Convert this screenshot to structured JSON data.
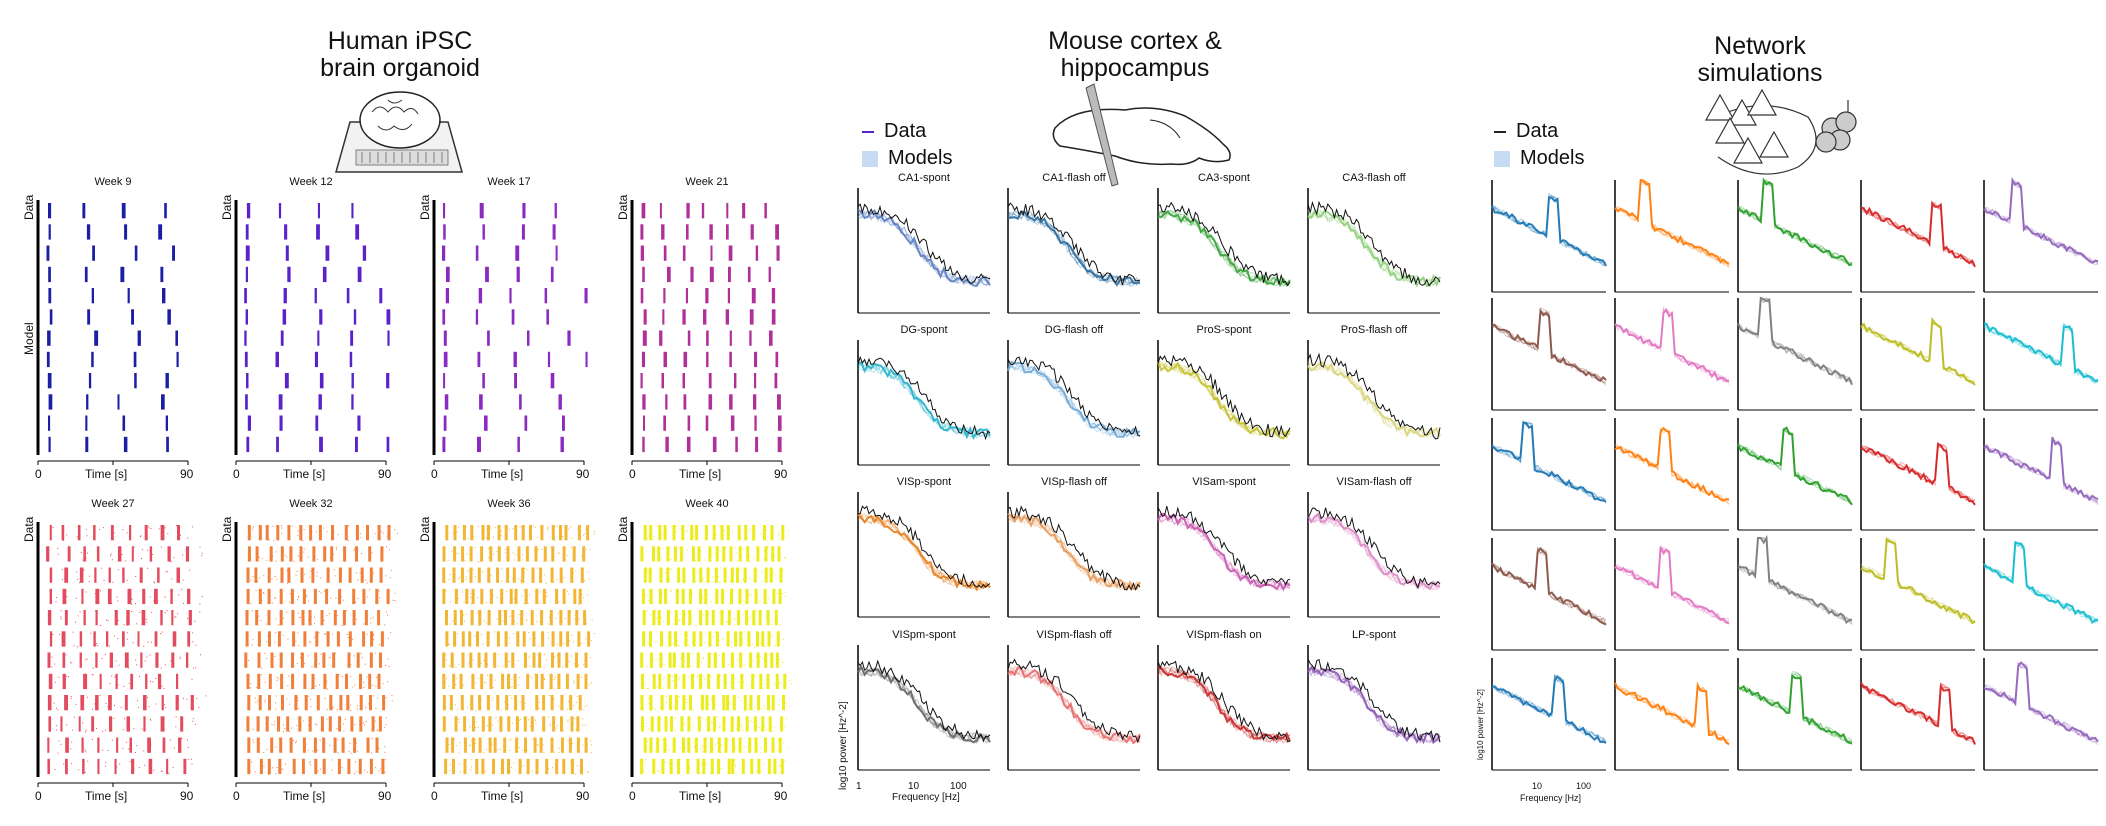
{
  "sections": {
    "organoid": {
      "title_line1": "Human iPSC",
      "title_line2": "brain organoid"
    },
    "mouse": {
      "title_line1": "Mouse cortex &",
      "title_line2": "hippocampus"
    },
    "network": {
      "title_line1": "Network",
      "title_line2": "simulations"
    }
  },
  "legend": {
    "data": "Data",
    "models": "Models"
  },
  "raster": {
    "weeks": [
      "Week 9",
      "Week 12",
      "Week 17",
      "Week 21",
      "Week 27",
      "Week 32",
      "Week 36",
      "Week 40"
    ],
    "colors": [
      "#1c1fa3",
      "#5a22c9",
      "#8a2ac0",
      "#b0309a",
      "#e24c5e",
      "#f07f3c",
      "#f3b534",
      "#ecec1a"
    ],
    "xlabel": "Time [s]",
    "xticks": [
      "0",
      "90"
    ],
    "ylabel_data": "Data",
    "ylabel_model": "Model"
  },
  "mouse_panels": {
    "titles": [
      "CA1-spont",
      "CA1-flash off",
      "CA3-spont",
      "CA3-flash off",
      "DG-spont",
      "DG-flash off",
      "ProS-spont",
      "ProS-flash off",
      "VISp-spont",
      "VISp-flash off",
      "VISam-spont",
      "VISam-flash off",
      "VISpm-spont",
      "VISpm-flash off",
      "VISpm-flash on",
      "LP-spont"
    ],
    "colors": [
      "#5b7fc0",
      "#2b6c9e",
      "#3aa33a",
      "#8fd07c",
      "#27b3c8",
      "#6fa8d6",
      "#c4c12c",
      "#d9d47a",
      "#e87e1c",
      "#e89a5a",
      "#c95ab0",
      "#dc8ac6",
      "#666666",
      "#e56a6a",
      "#c62828",
      "#8e5bb5"
    ],
    "ylabel": "log10 power [Hz^-2]",
    "xlabel": "Frequency [Hz]",
    "xticks": [
      "1",
      "10",
      "100"
    ]
  },
  "network_panels": {
    "colors": [
      [
        "#1f77b4",
        "#ff7f0e",
        "#2ca02c",
        "#d62728",
        "#9467bd"
      ],
      [
        "#8c564b",
        "#e377c2",
        "#7f7f7f",
        "#bcbd22",
        "#17becf"
      ],
      [
        "#1f77b4",
        "#ff7f0e",
        "#2ca02c",
        "#d62728",
        "#9467bd"
      ],
      [
        "#8c564b",
        "#e377c2",
        "#7f7f7f",
        "#bcbd22",
        "#17becf"
      ],
      [
        "#1f77b4",
        "#ff7f0e",
        "#2ca02c",
        "#d62728",
        "#9467bd"
      ]
    ],
    "ylabel": "log10 power [Hz^-2]",
    "xlabel": "Frequency [Hz]",
    "xticks": [
      "10",
      "100"
    ]
  }
}
